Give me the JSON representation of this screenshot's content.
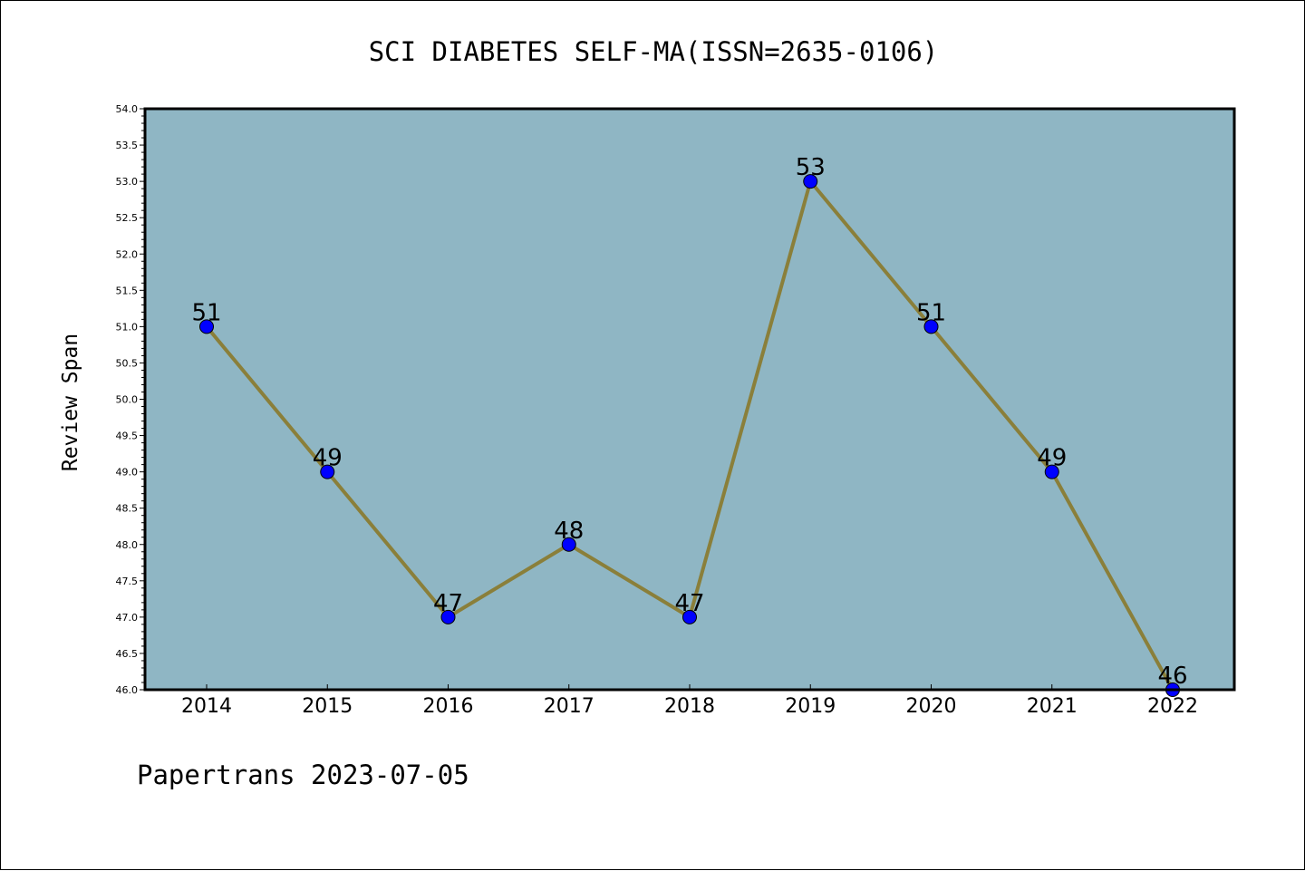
{
  "chart_data": {
    "type": "line",
    "title": "SCI DIABETES SELF-MA(ISSN=2635-0106)",
    "xlabel": "",
    "ylabel": "Review Span",
    "categories": [
      "2014",
      "2015",
      "2016",
      "2017",
      "2018",
      "2019",
      "2020",
      "2021",
      "2022"
    ],
    "series": [
      {
        "values": [
          51,
          49,
          47,
          48,
          47,
          53,
          51,
          49,
          46
        ],
        "data_labels": [
          "51",
          "49",
          "47",
          "48",
          "47",
          "53",
          "51",
          "49",
          "46"
        ]
      }
    ],
    "ylim": [
      46.0,
      54.0
    ],
    "yticks": [
      "46.0",
      "46.5",
      "47.0",
      "47.5",
      "48.0",
      "48.5",
      "49.0",
      "49.5",
      "50.0",
      "50.5",
      "51.0",
      "51.5",
      "52.0",
      "52.5",
      "53.0",
      "53.5",
      "54.0"
    ],
    "grid": false,
    "legend": "none"
  },
  "footer": "Papertrans 2023-07-05",
  "colors": {
    "plot_background": "#8fb6c4",
    "line": "#8a7f3a",
    "marker": "#0000ff",
    "axis": "#000000"
  }
}
